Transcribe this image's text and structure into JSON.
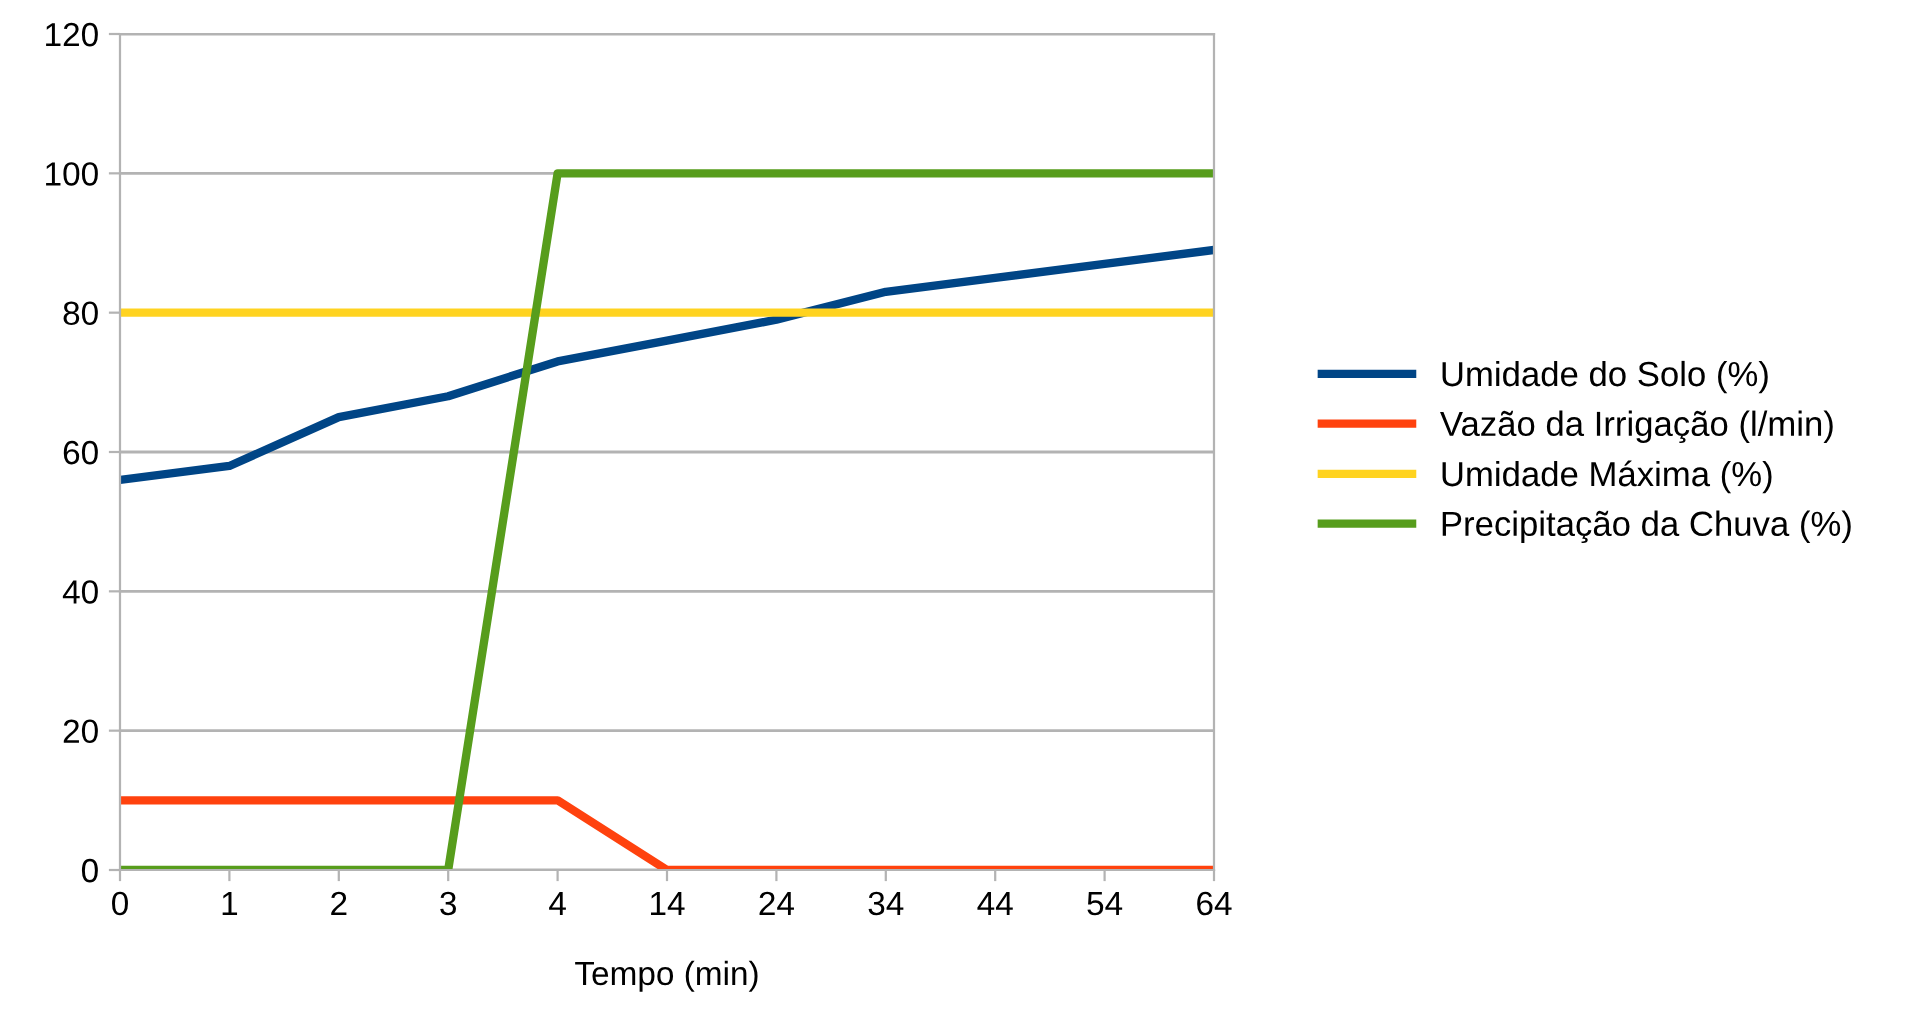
{
  "chart_data": {
    "type": "line",
    "xlabel": "Tempo (min)",
    "categories": [
      "0",
      "1",
      "2",
      "3",
      "4",
      "14",
      "24",
      "34",
      "44",
      "54",
      "64"
    ],
    "series": [
      {
        "name": "Umidade do Solo (%)",
        "color": "#004586",
        "values": [
          56,
          58,
          65,
          68,
          73,
          76,
          79,
          83,
          85,
          87,
          89
        ]
      },
      {
        "name": "Vazão da Irrigação (l/min)",
        "color": "#ff420e",
        "values": [
          10,
          10,
          10,
          10,
          10,
          0,
          0,
          0,
          0,
          0,
          0
        ]
      },
      {
        "name": "Umidade Máxima (%)",
        "color": "#ffd320",
        "values": [
          80,
          80,
          80,
          80,
          80,
          80,
          80,
          80,
          80,
          80,
          80
        ]
      },
      {
        "name": "Precipitação da Chuva (%)",
        "color": "#579d1c",
        "values": [
          0,
          0,
          0,
          0,
          100,
          100,
          100,
          100,
          100,
          100,
          100
        ]
      }
    ],
    "ylim": [
      0,
      120
    ],
    "yticks": [
      0,
      20,
      40,
      60,
      80,
      100,
      120
    ],
    "grid": "y",
    "legend": "right",
    "marker": "none",
    "line_style": "solid"
  }
}
